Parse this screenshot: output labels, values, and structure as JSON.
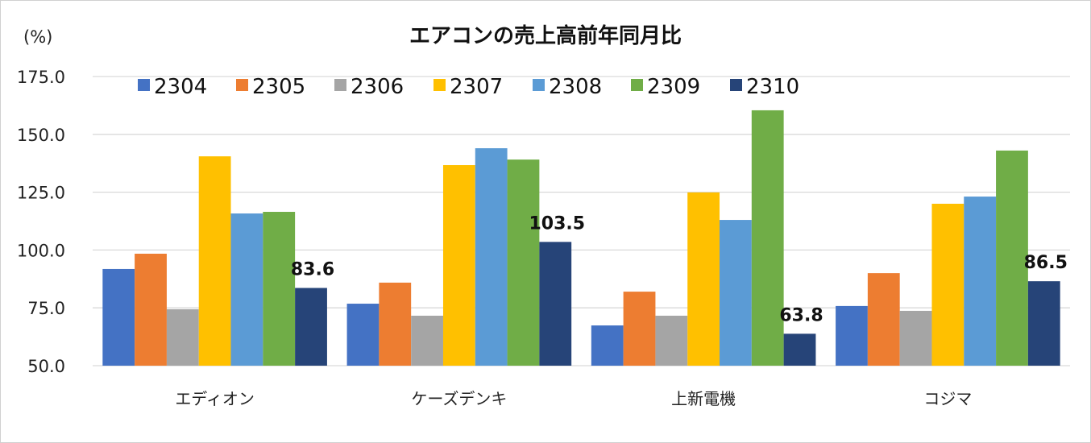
{
  "chart_data": {
    "type": "bar",
    "title": "エアコンの売上高前年同月比",
    "ylabel": "(%)",
    "xlabel": "",
    "ylim": [
      50,
      175
    ],
    "yticks": [
      "175.0",
      "150.0",
      "125.0",
      "100.0",
      "75.0",
      "50.0"
    ],
    "ytick_values": [
      175,
      150,
      125,
      100,
      75,
      50
    ],
    "grid": true,
    "legend_position": "top",
    "categories": [
      "エディオン",
      "ケーズデンキ",
      "上新電機",
      "コジマ"
    ],
    "series": [
      {
        "name": "2304",
        "color": "#4472C4",
        "values": [
          91.8,
          76.8,
          67.4,
          75.8
        ]
      },
      {
        "name": "2305",
        "color": "#ED7D31",
        "values": [
          98.4,
          85.9,
          82.0,
          90.0
        ]
      },
      {
        "name": "2306",
        "color": "#A5A5A5",
        "values": [
          74.4,
          71.6,
          71.6,
          73.7
        ]
      },
      {
        "name": "2307",
        "color": "#FFC000",
        "values": [
          140.5,
          136.7,
          124.9,
          120.0
        ]
      },
      {
        "name": "2308",
        "color": "#5B9BD5",
        "values": [
          115.8,
          144.0,
          113.0,
          123.1
        ]
      },
      {
        "name": "2309",
        "color": "#70AD47",
        "values": [
          116.5,
          139.1,
          160.4,
          143.0
        ]
      },
      {
        "name": "2310",
        "color": "#264478",
        "values": [
          83.6,
          103.5,
          63.8,
          86.5
        ]
      }
    ],
    "data_labels": {
      "series": "2310",
      "labels": [
        "83.6",
        "103.5",
        "63.8",
        "86.5"
      ]
    }
  }
}
